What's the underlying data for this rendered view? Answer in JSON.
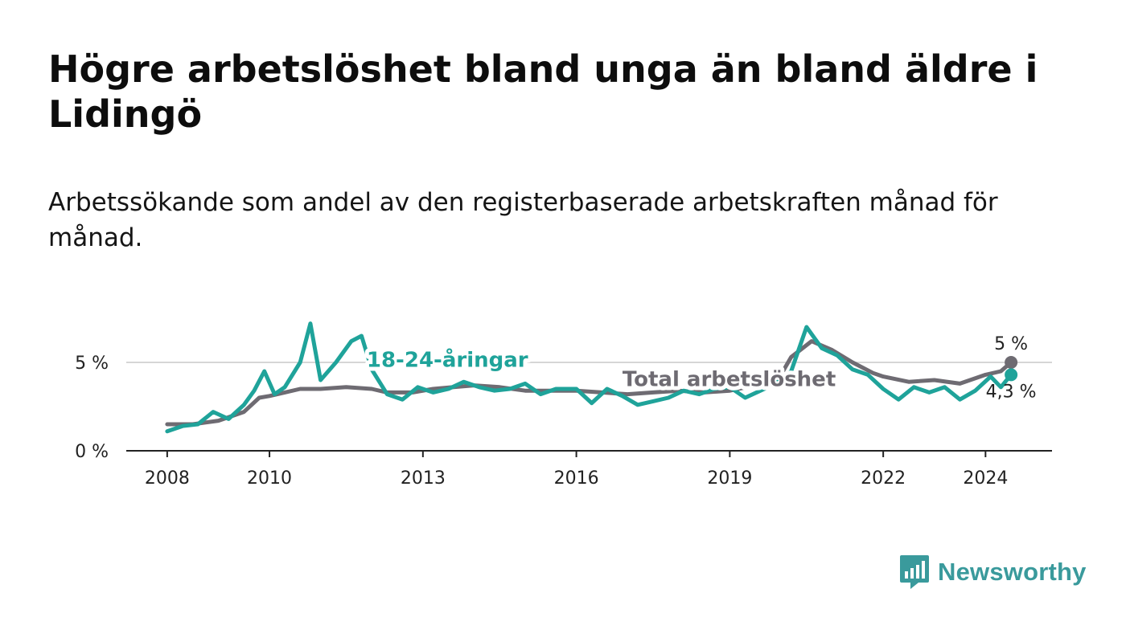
{
  "header": {
    "title": "Högre arbetslöshet bland unga än bland äldre i Lidingö",
    "subtitle": "Arbetssökande som andel av den registerbaserade arbetskraften månad för månad."
  },
  "brand": {
    "name": "Newsworthy",
    "color": "#3a9a9c",
    "logo_icon": "chart-bubble-icon"
  },
  "chart_data": {
    "type": "line",
    "title": "Högre arbetslöshet bland unga än bland äldre i Lidingö",
    "subtitle": "Arbetssökande som andel av den registerbaserade arbetskraften månad för månad.",
    "xlabel": "",
    "ylabel": "",
    "xlim": [
      2007.2,
      2025.3
    ],
    "ylim": [
      0,
      8
    ],
    "y_ticks": [
      0,
      5
    ],
    "y_tick_labels": [
      "0 %",
      "5 %"
    ],
    "x_ticks": [
      2008,
      2010,
      2013,
      2016,
      2019,
      2022,
      2024
    ],
    "x_tick_labels": [
      "2008",
      "2010",
      "2013",
      "2016",
      "2019",
      "2022",
      "2024"
    ],
    "grid": "horizontal",
    "series": [
      {
        "name": "Total arbetslöshet",
        "color": "#6e6b72",
        "end_label": "5 %",
        "x": [
          2008.0,
          2008.5,
          2009.0,
          2009.5,
          2009.8,
          2010.0,
          2010.3,
          2010.6,
          2011.0,
          2011.5,
          2012.0,
          2012.3,
          2012.8,
          2013.2,
          2013.6,
          2014.0,
          2014.5,
          2015.0,
          2015.5,
          2016.0,
          2016.5,
          2017.0,
          2017.5,
          2018.0,
          2018.5,
          2019.0,
          2019.5,
          2020.0,
          2020.2,
          2020.6,
          2021.0,
          2021.4,
          2021.8,
          2022.0,
          2022.5,
          2023.0,
          2023.5,
          2024.0,
          2024.3,
          2024.5
        ],
        "values": [
          1.5,
          1.5,
          1.7,
          2.2,
          3.0,
          3.1,
          3.3,
          3.5,
          3.5,
          3.6,
          3.5,
          3.3,
          3.3,
          3.5,
          3.6,
          3.7,
          3.6,
          3.4,
          3.4,
          3.4,
          3.3,
          3.2,
          3.3,
          3.4,
          3.3,
          3.4,
          3.7,
          4.3,
          5.3,
          6.2,
          5.7,
          5.0,
          4.4,
          4.2,
          3.9,
          4.0,
          3.8,
          4.3,
          4.5,
          5.0
        ]
      },
      {
        "name": "18-24-åringar",
        "color": "#1fa39a",
        "end_label": "4,3 %",
        "x": [
          2008.0,
          2008.3,
          2008.6,
          2008.9,
          2009.2,
          2009.5,
          2009.7,
          2009.9,
          2010.1,
          2010.3,
          2010.6,
          2010.8,
          2011.0,
          2011.3,
          2011.6,
          2011.8,
          2012.0,
          2012.3,
          2012.6,
          2012.9,
          2013.2,
          2013.5,
          2013.8,
          2014.1,
          2014.4,
          2014.7,
          2015.0,
          2015.3,
          2015.6,
          2016.0,
          2016.3,
          2016.6,
          2016.9,
          2017.2,
          2017.5,
          2017.8,
          2018.1,
          2018.4,
          2018.7,
          2019.0,
          2019.3,
          2019.6,
          2019.9,
          2020.2,
          2020.5,
          2020.8,
          2021.1,
          2021.4,
          2021.7,
          2022.0,
          2022.3,
          2022.6,
          2022.9,
          2023.2,
          2023.5,
          2023.8,
          2024.1,
          2024.3,
          2024.5
        ],
        "values": [
          1.1,
          1.4,
          1.5,
          2.2,
          1.8,
          2.6,
          3.4,
          4.5,
          3.2,
          3.6,
          5.0,
          7.2,
          4.0,
          5.0,
          6.2,
          6.5,
          4.6,
          3.2,
          2.9,
          3.6,
          3.3,
          3.5,
          3.9,
          3.6,
          3.4,
          3.5,
          3.8,
          3.2,
          3.5,
          3.5,
          2.7,
          3.5,
          3.1,
          2.6,
          2.8,
          3.0,
          3.4,
          3.2,
          3.5,
          3.6,
          3.0,
          3.4,
          3.8,
          4.5,
          7.0,
          5.8,
          5.4,
          4.6,
          4.3,
          3.5,
          2.9,
          3.6,
          3.3,
          3.6,
          2.9,
          3.4,
          4.2,
          3.6,
          4.3
        ]
      }
    ],
    "annotations": [
      "18-24-åringar",
      "Total arbetslöshet",
      "5 %",
      "4,3 %"
    ]
  }
}
